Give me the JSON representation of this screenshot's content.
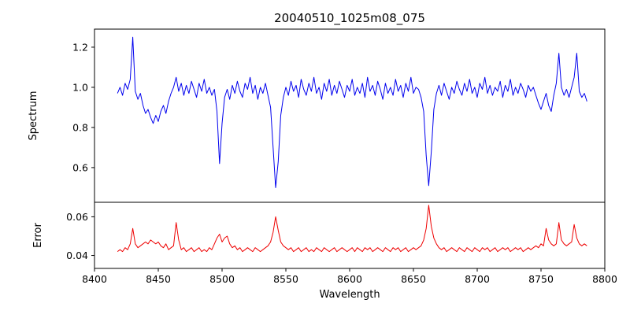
{
  "chart_data": {
    "type": "line",
    "title": "20040510_1025m08_075",
    "xlabel": "Wavelength",
    "background": "#ffffff",
    "grid": false,
    "legend": "none",
    "xlim": [
      8400,
      8800
    ],
    "xticks": [
      8400,
      8450,
      8500,
      8550,
      8600,
      8650,
      8700,
      8750,
      8800
    ],
    "xticklabels": [
      "8400",
      "8450",
      "8500",
      "8550",
      "8600",
      "8650",
      "8700",
      "8750",
      "8800"
    ],
    "x": [
      8418,
      8420,
      8422,
      8424,
      8426,
      8428,
      8430,
      8432,
      8434,
      8436,
      8438,
      8440,
      8442,
      8444,
      8446,
      8448,
      8450,
      8452,
      8454,
      8456,
      8458,
      8460,
      8462,
      8464,
      8466,
      8468,
      8470,
      8472,
      8474,
      8476,
      8478,
      8480,
      8482,
      8484,
      8486,
      8488,
      8490,
      8492,
      8494,
      8496,
      8498,
      8500,
      8502,
      8504,
      8506,
      8508,
      8510,
      8512,
      8514,
      8516,
      8518,
      8520,
      8522,
      8524,
      8526,
      8528,
      8530,
      8532,
      8534,
      8536,
      8538,
      8540,
      8542,
      8544,
      8546,
      8548,
      8550,
      8552,
      8554,
      8556,
      8558,
      8560,
      8562,
      8564,
      8566,
      8568,
      8570,
      8572,
      8574,
      8576,
      8578,
      8580,
      8582,
      8584,
      8586,
      8588,
      8590,
      8592,
      8594,
      8596,
      8598,
      8600,
      8602,
      8604,
      8606,
      8608,
      8610,
      8612,
      8614,
      8616,
      8618,
      8620,
      8622,
      8624,
      8626,
      8628,
      8630,
      8632,
      8634,
      8636,
      8638,
      8640,
      8642,
      8644,
      8646,
      8648,
      8650,
      8652,
      8654,
      8656,
      8658,
      8660,
      8662,
      8664,
      8666,
      8668,
      8670,
      8672,
      8674,
      8676,
      8678,
      8680,
      8682,
      8684,
      8686,
      8688,
      8690,
      8692,
      8694,
      8696,
      8698,
      8700,
      8702,
      8704,
      8706,
      8708,
      8710,
      8712,
      8714,
      8716,
      8718,
      8720,
      8722,
      8724,
      8726,
      8728,
      8730,
      8732,
      8734,
      8736,
      8738,
      8740,
      8742,
      8744,
      8746,
      8748,
      8750,
      8752,
      8754,
      8756,
      8758,
      8760,
      8762,
      8764,
      8766,
      8768,
      8770,
      8772,
      8774,
      8776,
      8778,
      8780,
      8782,
      8784,
      8786
    ],
    "panels": [
      {
        "name": "spectrum",
        "ylabel": "Spectrum",
        "color": "#0000ee",
        "ylim": [
          0.427,
          1.29
        ],
        "yticks": [
          0.6,
          0.8,
          1.0,
          1.2
        ],
        "yticklabels": [
          "0.6",
          "0.8",
          "1.0",
          "1.2"
        ],
        "values": [
          0.97,
          1.0,
          0.96,
          1.02,
          0.99,
          1.04,
          1.25,
          0.98,
          0.94,
          0.97,
          0.91,
          0.87,
          0.89,
          0.85,
          0.82,
          0.86,
          0.83,
          0.88,
          0.91,
          0.87,
          0.93,
          0.97,
          1.0,
          1.05,
          0.98,
          1.02,
          0.96,
          1.01,
          0.97,
          1.03,
          0.99,
          0.95,
          1.02,
          0.98,
          1.04,
          0.97,
          1.0,
          0.96,
          0.99,
          0.88,
          0.62,
          0.82,
          0.95,
          0.99,
          0.94,
          1.01,
          0.97,
          1.03,
          0.98,
          0.95,
          1.02,
          0.99,
          1.05,
          0.97,
          1.01,
          0.94,
          1.0,
          0.97,
          1.02,
          0.96,
          0.9,
          0.7,
          0.5,
          0.63,
          0.86,
          0.95,
          1.0,
          0.96,
          1.03,
          0.98,
          1.01,
          0.95,
          1.04,
          0.99,
          0.96,
          1.02,
          0.98,
          1.05,
          0.97,
          1.0,
          0.94,
          1.02,
          0.98,
          1.04,
          0.96,
          1.01,
          0.97,
          1.03,
          0.99,
          0.95,
          1.01,
          0.98,
          1.04,
          0.96,
          1.0,
          0.97,
          1.02,
          0.95,
          1.05,
          0.98,
          1.01,
          0.96,
          1.03,
          0.99,
          0.94,
          1.02,
          0.97,
          1.0,
          0.96,
          1.04,
          0.98,
          1.01,
          0.95,
          1.02,
          0.98,
          1.05,
          0.97,
          1.0,
          0.99,
          0.95,
          0.88,
          0.66,
          0.51,
          0.68,
          0.89,
          0.97,
          1.01,
          0.96,
          1.02,
          0.98,
          0.94,
          1.0,
          0.97,
          1.03,
          0.99,
          0.96,
          1.02,
          0.98,
          1.04,
          0.97,
          1.0,
          0.95,
          1.02,
          0.99,
          1.05,
          0.97,
          1.01,
          0.96,
          1.0,
          0.98,
          1.03,
          0.95,
          1.01,
          0.98,
          1.04,
          0.96,
          1.0,
          0.97,
          1.02,
          0.99,
          0.95,
          1.01,
          0.98,
          1.0,
          0.96,
          0.92,
          0.89,
          0.93,
          0.97,
          0.91,
          0.88,
          0.96,
          1.02,
          1.17,
          1.0,
          0.96,
          0.99,
          0.95,
          1.0,
          1.05,
          1.17,
          0.98,
          0.95,
          0.97,
          0.93
        ]
      },
      {
        "name": "error",
        "ylabel": "Error",
        "color": "#ee0000",
        "ylim": [
          0.0333,
          0.0675
        ],
        "yticks": [
          0.04,
          0.06
        ],
        "yticklabels": [
          "0.04",
          "0.06"
        ],
        "values": [
          0.042,
          0.043,
          0.042,
          0.044,
          0.043,
          0.046,
          0.054,
          0.046,
          0.044,
          0.045,
          0.046,
          0.047,
          0.046,
          0.048,
          0.047,
          0.046,
          0.047,
          0.045,
          0.044,
          0.046,
          0.043,
          0.044,
          0.045,
          0.057,
          0.048,
          0.043,
          0.044,
          0.042,
          0.043,
          0.044,
          0.042,
          0.043,
          0.044,
          0.042,
          0.043,
          0.042,
          0.044,
          0.043,
          0.046,
          0.049,
          0.051,
          0.047,
          0.049,
          0.05,
          0.046,
          0.044,
          0.045,
          0.043,
          0.044,
          0.042,
          0.043,
          0.044,
          0.043,
          0.042,
          0.044,
          0.043,
          0.042,
          0.043,
          0.044,
          0.045,
          0.047,
          0.052,
          0.06,
          0.053,
          0.047,
          0.045,
          0.044,
          0.043,
          0.044,
          0.042,
          0.043,
          0.044,
          0.042,
          0.043,
          0.044,
          0.042,
          0.043,
          0.042,
          0.044,
          0.043,
          0.042,
          0.044,
          0.043,
          0.042,
          0.043,
          0.044,
          0.042,
          0.043,
          0.044,
          0.043,
          0.042,
          0.043,
          0.044,
          0.042,
          0.044,
          0.043,
          0.042,
          0.044,
          0.043,
          0.044,
          0.042,
          0.043,
          0.044,
          0.043,
          0.042,
          0.044,
          0.043,
          0.042,
          0.044,
          0.043,
          0.044,
          0.042,
          0.043,
          0.044,
          0.042,
          0.043,
          0.044,
          0.043,
          0.044,
          0.045,
          0.048,
          0.054,
          0.066,
          0.055,
          0.049,
          0.046,
          0.044,
          0.043,
          0.044,
          0.042,
          0.043,
          0.044,
          0.043,
          0.042,
          0.044,
          0.043,
          0.042,
          0.044,
          0.043,
          0.042,
          0.044,
          0.043,
          0.042,
          0.044,
          0.043,
          0.044,
          0.042,
          0.043,
          0.044,
          0.042,
          0.043,
          0.044,
          0.043,
          0.044,
          0.042,
          0.043,
          0.044,
          0.043,
          0.044,
          0.042,
          0.043,
          0.044,
          0.043,
          0.044,
          0.045,
          0.044,
          0.046,
          0.045,
          0.054,
          0.048,
          0.046,
          0.045,
          0.046,
          0.057,
          0.048,
          0.046,
          0.045,
          0.046,
          0.047,
          0.056,
          0.049,
          0.046,
          0.045,
          0.046,
          0.045
        ]
      }
    ]
  }
}
